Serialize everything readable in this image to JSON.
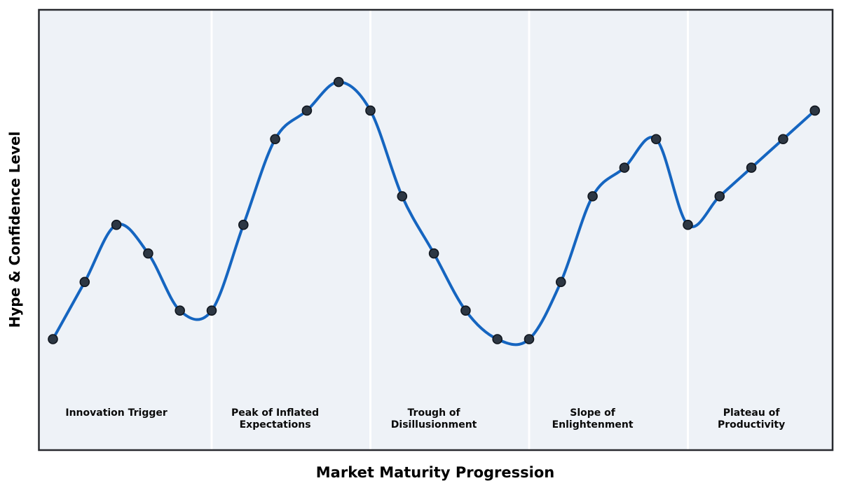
{
  "axes": {
    "xlabel": "Market Maturity Progression",
    "ylabel": "Hype & Confidence Level"
  },
  "phases": [
    {
      "label": "Innovation Trigger"
    },
    {
      "label": "Peak of Inflated\nExpectations"
    },
    {
      "label": "Trough of\nDisillusionment"
    },
    {
      "label": "Slope of\nEnlightenment"
    },
    {
      "label": "Plateau of\nProductivity"
    }
  ],
  "chart_data": {
    "type": "line",
    "xlabel": "Market Maturity Progression",
    "ylabel": "Hype & Confidence Level",
    "x": [
      0,
      1,
      2,
      3,
      4,
      5,
      6,
      7,
      8,
      9,
      10,
      11,
      12,
      13,
      14,
      15,
      16,
      17,
      18,
      19,
      20,
      21,
      22,
      23,
      24
    ],
    "y": [
      1,
      3,
      5,
      4,
      2,
      2,
      5,
      8,
      9,
      10,
      9,
      6,
      4,
      2,
      1,
      1,
      3,
      6,
      7,
      8,
      5,
      6,
      7,
      8,
      9
    ],
    "ylim": [
      -2.8,
      12.6
    ],
    "xlim": [
      -0.45,
      24.55
    ],
    "smoothing": "cubic-spline",
    "grid": false,
    "ticks": "none",
    "legend": "none",
    "phase_labels": [
      "Innovation Trigger",
      "Peak of Inflated Expectations",
      "Trough of Disillusionment",
      "Slope of Enlightenment",
      "Plateau of Productivity"
    ],
    "phase_divider_x": [
      5,
      10,
      15,
      20
    ],
    "phase_label_center_x": [
      2,
      7,
      12,
      17,
      22
    ],
    "colors": {
      "line": "#1565c0",
      "marker_fill": "#2d3743",
      "marker_edge": "#10161e",
      "plot_background": "#eef2f7",
      "divider": "#ffffff",
      "border": "#27292e",
      "figure_background": "#ffffff"
    },
    "style": {
      "line_width": 4,
      "marker_radius": 6.5,
      "marker_edge_width": 1.6,
      "divider_width": 3,
      "border_width": 2.5
    }
  }
}
